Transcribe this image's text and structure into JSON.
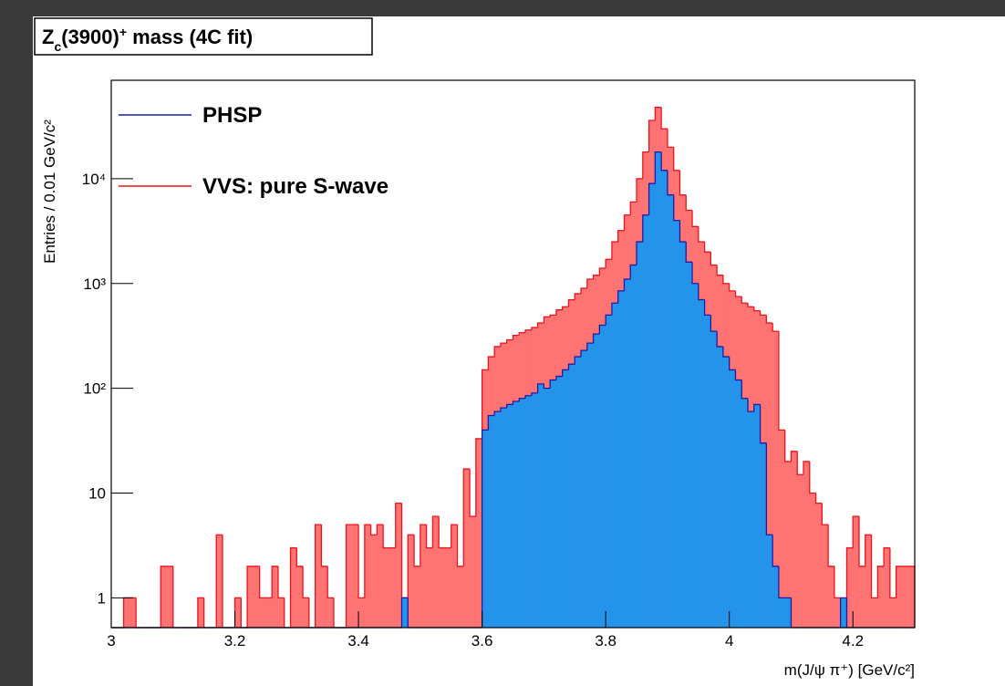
{
  "chart_data": {
    "type": "histogram",
    "title": [
      {
        "text": "Z"
      },
      {
        "text": "c",
        "pos": "sub"
      },
      {
        "text": "(3900)"
      },
      {
        "text": "+",
        "pos": "sup"
      },
      {
        "text": " mass (4C fit)"
      }
    ],
    "x_label": "m(J/ψ π⁺)  [GeV/c²]",
    "y_label": "Entries /  0.01 GeV/c²",
    "log_y": true,
    "legend": "upper left",
    "xlim": [
      3,
      4.3
    ],
    "xticks": [
      3,
      3.2,
      3.4,
      3.6,
      3.8,
      4,
      4.2
    ],
    "ylim": [
      0.52,
      87000
    ],
    "yticks": [
      1,
      10,
      {
        "value": 100,
        "label": "10²"
      },
      {
        "value": 1000,
        "label": "10³"
      },
      {
        "value": 10000,
        "label": "10⁴"
      }
    ],
    "bins": [
      3,
      3.01,
      3.02,
      3.03,
      3.04,
      3.05,
      3.06,
      3.07,
      3.08,
      3.09,
      3.1,
      3.11,
      3.12,
      3.13,
      3.14,
      3.15,
      3.16,
      3.17,
      3.18,
      3.19,
      3.2,
      3.21,
      3.22,
      3.23,
      3.24,
      3.25,
      3.26,
      3.27,
      3.28,
      3.29,
      3.3,
      3.31,
      3.32,
      3.33,
      3.34,
      3.35,
      3.36,
      3.37,
      3.38,
      3.39,
      3.4,
      3.41,
      3.42,
      3.43,
      3.44,
      3.45,
      3.46,
      3.47,
      3.48,
      3.49,
      3.5,
      3.51,
      3.52,
      3.53,
      3.54,
      3.55,
      3.56,
      3.57,
      3.58,
      3.59,
      3.6,
      3.61,
      3.62,
      3.63,
      3.64,
      3.65,
      3.66,
      3.67,
      3.68,
      3.69,
      3.7,
      3.71,
      3.72,
      3.73,
      3.74,
      3.75,
      3.76,
      3.77,
      3.78,
      3.79,
      3.8,
      3.81,
      3.82,
      3.83,
      3.84,
      3.85,
      3.86,
      3.87,
      3.88,
      3.89,
      3.9,
      3.91,
      3.92,
      3.93,
      3.94,
      3.95,
      3.96,
      3.97,
      3.98,
      3.99,
      4,
      4.01,
      4.02,
      4.03,
      4.04,
      4.05,
      4.06,
      4.07,
      4.08,
      4.09,
      4.1,
      4.11,
      4.12,
      4.13,
      4.14,
      4.15,
      4.16,
      4.17,
      4.18,
      4.19,
      4.2,
      4.21,
      4.22,
      4.23,
      4.24,
      4.25,
      4.26,
      4.27,
      4.28,
      4.29,
      4.3
    ],
    "series": [
      {
        "name": "VVS: pure S-wave",
        "color": "#ff7373",
        "line_color": "#e8141e",
        "values": [
          0,
          0,
          1,
          1,
          0,
          0,
          0,
          0,
          2,
          2,
          0,
          0,
          0,
          0,
          1,
          0,
          0,
          4,
          0,
          0,
          1,
          0,
          2,
          2,
          1,
          1,
          2,
          1,
          0,
          3,
          2,
          1,
          0,
          5,
          2,
          1,
          0,
          0,
          5,
          5,
          1,
          5,
          4,
          5,
          3,
          3,
          8,
          1,
          4,
          2,
          5,
          3,
          6,
          3,
          3,
          5,
          2,
          17,
          6,
          33,
          150,
          200,
          250,
          270,
          290,
          320,
          340,
          360,
          380,
          420,
          480,
          500,
          560,
          600,
          700,
          800,
          900,
          1100,
          1200,
          1400,
          1700,
          2500,
          3200,
          4500,
          6000,
          10000,
          18000,
          36000,
          48000,
          30000,
          20000,
          12000,
          7000,
          5000,
          3500,
          2500,
          2000,
          1500,
          1200,
          1000,
          850,
          750,
          650,
          600,
          550,
          500,
          420,
          350,
          40,
          20,
          25,
          15,
          20,
          10,
          8,
          5,
          2,
          1,
          0,
          3,
          6,
          2,
          4,
          1,
          2,
          3,
          1,
          2,
          2,
          2
        ]
      },
      {
        "name": "PHSP",
        "color": "#2494ea",
        "line_color": "#1c1ca8",
        "values": [
          0,
          0,
          0,
          0,
          0,
          0,
          0,
          0,
          0,
          0,
          0,
          0,
          0,
          0,
          0,
          0,
          0,
          0,
          0,
          0,
          0,
          0,
          0,
          0,
          0,
          0,
          0,
          0,
          0,
          0,
          0,
          0,
          0,
          0,
          0,
          0,
          0,
          0,
          0,
          0,
          0,
          0,
          0,
          0,
          0,
          0,
          0,
          1,
          0,
          0,
          0,
          0,
          0,
          0,
          0,
          0,
          0,
          0,
          0,
          0,
          40,
          55,
          60,
          65,
          70,
          75,
          80,
          85,
          90,
          110,
          100,
          120,
          130,
          150,
          170,
          200,
          230,
          270,
          330,
          400,
          500,
          650,
          850,
          1100,
          1500,
          2500,
          4500,
          9000,
          18000,
          12000,
          7000,
          4000,
          2500,
          1600,
          1000,
          700,
          500,
          350,
          250,
          200,
          150,
          120,
          80,
          60,
          70,
          30,
          4,
          2,
          1,
          1,
          0,
          0,
          0,
          0,
          0,
          0,
          0,
          0,
          1,
          0,
          0,
          0,
          0,
          0,
          0,
          0,
          0,
          0,
          0,
          0
        ]
      }
    ]
  }
}
